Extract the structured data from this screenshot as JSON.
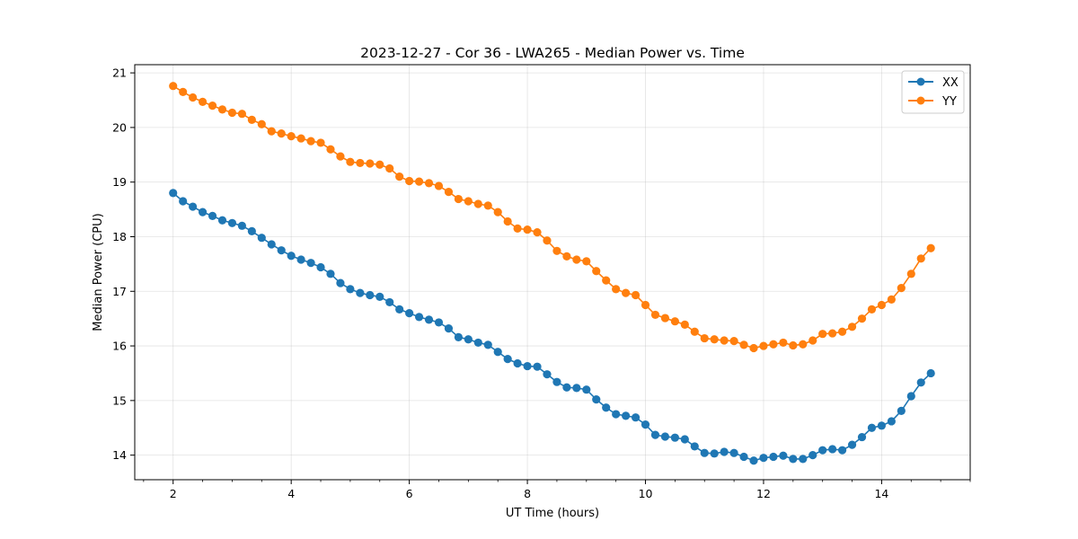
{
  "chart_data": {
    "type": "line",
    "title": "2023-12-27 - Cor 36 - LWA265 - Median Power vs. Time",
    "xlabel": "UT Time (hours)",
    "ylabel": "Median Power (CPU)",
    "xlim": [
      1.35,
      15.5
    ],
    "ylim": [
      13.55,
      21.15
    ],
    "xticks": [
      2,
      4,
      6,
      8,
      10,
      12,
      14
    ],
    "yticks": [
      14,
      15,
      16,
      17,
      18,
      19,
      20,
      21
    ],
    "grid": true,
    "legend_position": "top-right",
    "x": [
      2.0,
      2.1667,
      2.3333,
      2.5,
      2.6667,
      2.8333,
      3.0,
      3.1667,
      3.3333,
      3.5,
      3.6667,
      3.8333,
      4.0,
      4.1667,
      4.3333,
      4.5,
      4.6667,
      4.8333,
      5.0,
      5.1667,
      5.3333,
      5.5,
      5.6667,
      5.8333,
      6.0,
      6.1667,
      6.3333,
      6.5,
      6.6667,
      6.8333,
      7.0,
      7.1667,
      7.3333,
      7.5,
      7.6667,
      7.8333,
      8.0,
      8.1667,
      8.3333,
      8.5,
      8.6667,
      8.8333,
      9.0,
      9.1667,
      9.3333,
      9.5,
      9.6667,
      9.8333,
      10.0,
      10.1667,
      10.3333,
      10.5,
      10.6667,
      10.8333,
      11.0,
      11.1667,
      11.3333,
      11.5,
      11.6667,
      11.8333,
      12.0,
      12.1667,
      12.3333,
      12.5,
      12.6667,
      12.8333,
      13.0,
      13.1667,
      13.3333,
      13.5,
      13.6667,
      13.8333,
      14.0,
      14.1667,
      14.3333,
      14.5,
      14.6667,
      14.8333
    ],
    "series": [
      {
        "name": "XX",
        "color": "#1f77b4",
        "values": [
          18.8,
          18.65,
          18.55,
          18.45,
          18.38,
          18.3,
          18.25,
          18.2,
          18.1,
          17.98,
          17.86,
          17.75,
          17.65,
          17.58,
          17.52,
          17.44,
          17.32,
          17.15,
          17.04,
          16.97,
          16.93,
          16.9,
          16.8,
          16.67,
          16.6,
          16.53,
          16.48,
          16.43,
          16.32,
          16.16,
          16.12,
          16.06,
          16.02,
          15.89,
          15.76,
          15.68,
          15.63,
          15.62,
          15.48,
          15.34,
          15.24,
          15.23,
          15.2,
          15.02,
          14.87,
          14.75,
          14.72,
          14.69,
          14.56,
          14.37,
          14.34,
          14.32,
          14.29,
          14.16,
          14.04,
          14.03,
          14.06,
          14.04,
          13.97,
          13.9,
          13.95,
          13.97,
          13.99,
          13.93,
          13.93,
          14.0,
          14.09,
          14.11,
          14.09,
          14.19,
          14.33,
          14.5,
          14.54,
          14.62,
          14.81,
          15.08,
          15.33,
          15.5
        ]
      },
      {
        "name": "YY",
        "color": "#ff7f0e",
        "values": [
          20.76,
          20.65,
          20.55,
          20.47,
          20.4,
          20.33,
          20.27,
          20.25,
          20.14,
          20.06,
          19.93,
          19.89,
          19.84,
          19.8,
          19.75,
          19.72,
          19.6,
          19.47,
          19.37,
          19.35,
          19.34,
          19.32,
          19.25,
          19.1,
          19.02,
          19.01,
          18.98,
          18.93,
          18.82,
          18.69,
          18.65,
          18.6,
          18.57,
          18.45,
          18.28,
          18.15,
          18.13,
          18.08,
          17.93,
          17.74,
          17.64,
          17.58,
          17.55,
          17.37,
          17.2,
          17.04,
          16.97,
          16.93,
          16.75,
          16.57,
          16.51,
          16.45,
          16.39,
          16.26,
          16.14,
          16.12,
          16.1,
          16.09,
          16.02,
          15.96,
          16.0,
          16.03,
          16.06,
          16.01,
          16.03,
          16.1,
          16.22,
          16.23,
          16.26,
          16.35,
          16.5,
          16.67,
          16.75,
          16.85,
          17.06,
          17.32,
          17.6,
          17.79
        ]
      }
    ]
  }
}
